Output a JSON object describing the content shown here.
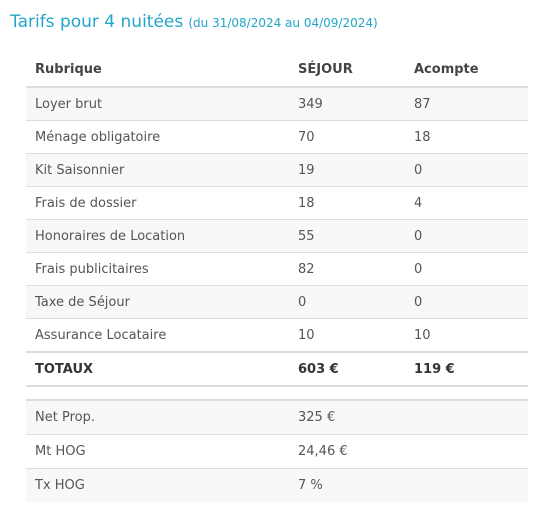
{
  "header": {
    "title": "Tarifs pour 4 nuitées",
    "subtitle": "(du 31/08/2024 au 04/09/2024)"
  },
  "table": {
    "columns": [
      "Rubrique",
      "SÉJOUR",
      "Acompte"
    ],
    "rows": [
      {
        "rubrique": "Loyer brut",
        "sejour": "349",
        "acompte": "87"
      },
      {
        "rubrique": "Ménage obligatoire",
        "sejour": "70",
        "acompte": "18"
      },
      {
        "rubrique": "Kit Saisonnier",
        "sejour": "19",
        "acompte": "0"
      },
      {
        "rubrique": "Frais de dossier",
        "sejour": "18",
        "acompte": "4"
      },
      {
        "rubrique": "Honoraires de Location",
        "sejour": "55",
        "acompte": "0"
      },
      {
        "rubrique": "Frais publicitaires",
        "sejour": "82",
        "acompte": "0"
      },
      {
        "rubrique": "Taxe de Séjour",
        "sejour": "0",
        "acompte": "0"
      },
      {
        "rubrique": "Assurance Locataire",
        "sejour": "10",
        "acompte": "10"
      }
    ],
    "totals": {
      "label": "TOTAUX",
      "sejour": "603 €",
      "acompte": "119 €"
    }
  },
  "extra": {
    "rows": [
      {
        "label": "Net Prop.",
        "value": "325 €"
      },
      {
        "label": "Mt HOG",
        "value": "24,46 €"
      },
      {
        "label": "Tx HOG",
        "value": "7 %"
      }
    ]
  },
  "colors": {
    "title": "#23a5c9",
    "border": "#dddddd",
    "stripe": "#f8f8f8",
    "text": "#444444"
  }
}
